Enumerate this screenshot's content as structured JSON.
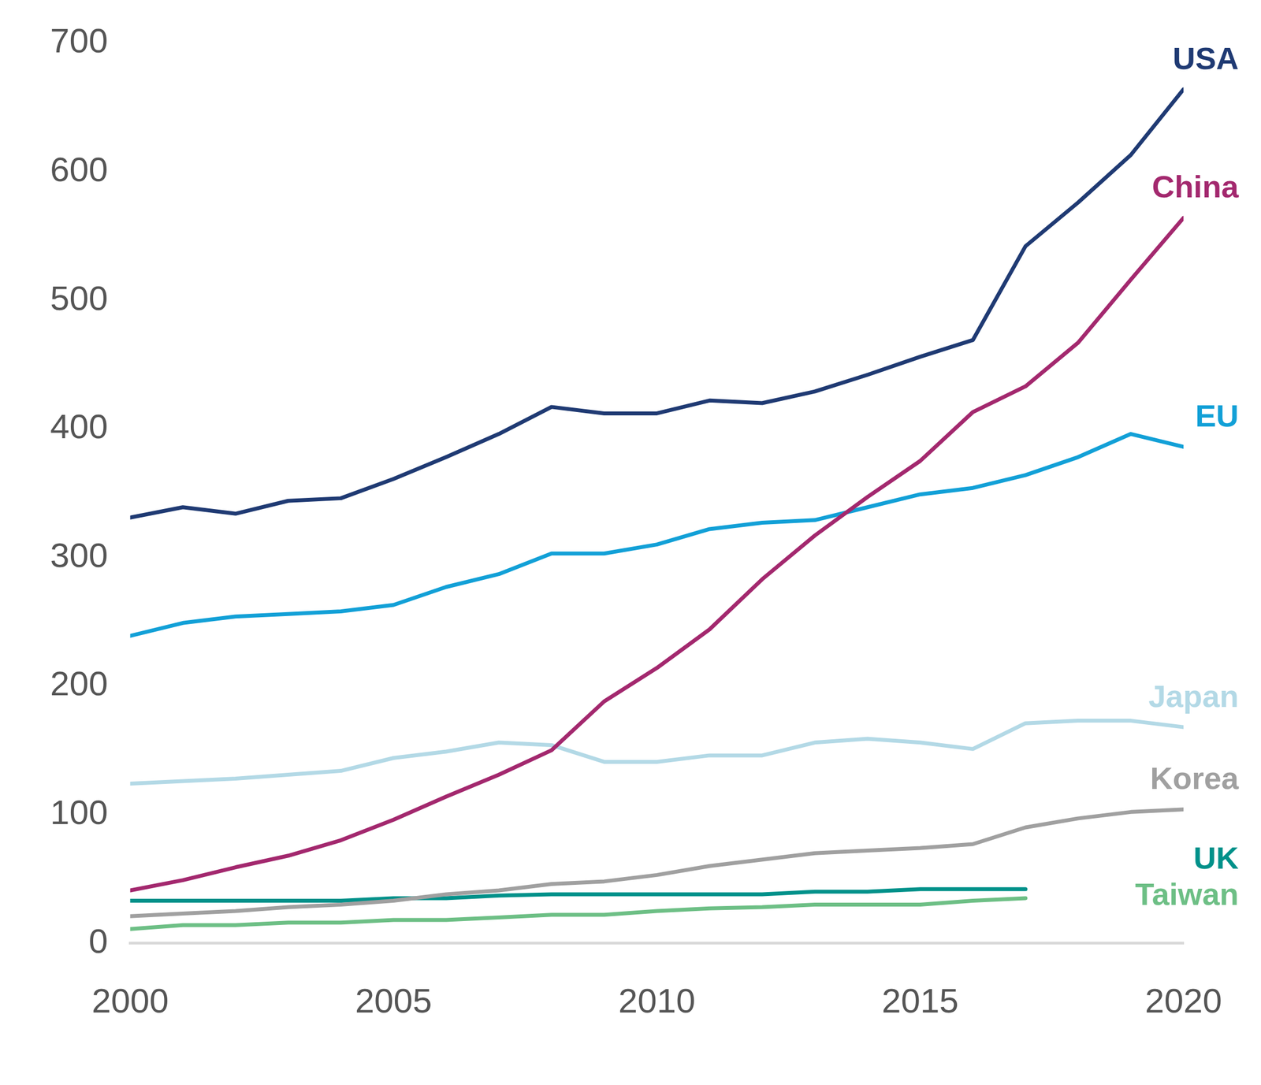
{
  "chart_data": {
    "type": "line",
    "x": [
      2000,
      2001,
      2002,
      2003,
      2004,
      2005,
      2006,
      2007,
      2008,
      2009,
      2010,
      2011,
      2012,
      2013,
      2014,
      2015,
      2016,
      2017,
      2018,
      2019,
      2020
    ],
    "series": [
      {
        "name": "USA",
        "color": "#1f3a73",
        "values": [
          331,
          339,
          334,
          344,
          346,
          361,
          378,
          396,
          417,
          412,
          412,
          422,
          420,
          429,
          442,
          456,
          469,
          542,
          576,
          613,
          664
        ]
      },
      {
        "name": "China",
        "color": "#a3286e",
        "values": [
          41,
          49,
          59,
          68,
          80,
          96,
          114,
          131,
          150,
          188,
          214,
          244,
          283,
          317,
          347,
          375,
          413,
          433,
          467,
          516,
          564
        ]
      },
      {
        "name": "EU",
        "color": "#12a0d7",
        "values": [
          239,
          249,
          254,
          256,
          258,
          263,
          277,
          287,
          303,
          303,
          310,
          322,
          327,
          329,
          339,
          349,
          354,
          364,
          378,
          396,
          386
        ]
      },
      {
        "name": "Japan",
        "color": "#b3d9e6",
        "values": [
          124,
          126,
          128,
          131,
          134,
          144,
          149,
          156,
          154,
          141,
          141,
          146,
          146,
          156,
          159,
          156,
          151,
          171,
          173,
          173,
          168
        ]
      },
      {
        "name": "Korea",
        "color": "#a0a0a0",
        "values": [
          21,
          23,
          25,
          28,
          30,
          33,
          38,
          41,
          46,
          48,
          53,
          60,
          65,
          70,
          72,
          74,
          77,
          90,
          97,
          102,
          104
        ]
      },
      {
        "name": "UK",
        "color": "#00918a",
        "values": [
          33,
          33,
          33,
          33,
          33,
          35,
          35,
          37,
          38,
          38,
          38,
          38,
          38,
          40,
          40,
          42,
          42,
          42,
          null,
          null,
          null
        ]
      },
      {
        "name": "Taiwan",
        "color": "#6dbf85",
        "values": [
          11,
          14,
          14,
          16,
          16,
          18,
          18,
          20,
          22,
          22,
          25,
          27,
          28,
          30,
          30,
          30,
          33,
          35,
          null,
          null,
          null
        ]
      }
    ],
    "xlim": [
      2000,
      2020
    ],
    "xticks": [
      2000,
      2005,
      2010,
      2015,
      2020
    ],
    "ylim": [
      0,
      700
    ],
    "yticks": [
      0,
      100,
      200,
      300,
      400,
      500,
      600,
      700
    ],
    "grid": false
  }
}
